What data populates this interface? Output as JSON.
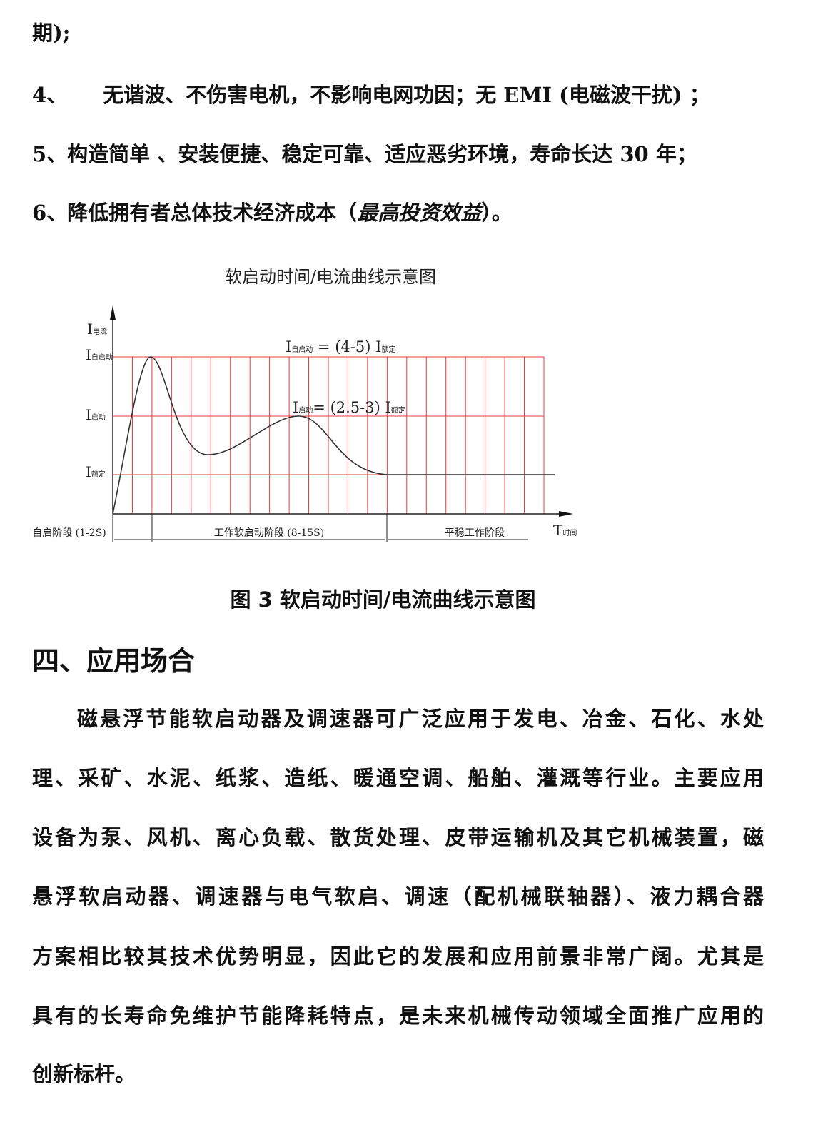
{
  "list": {
    "line0": "期);",
    "item4_num": "4、",
    "item4_text": "无谐波、不伤害电机，不影响电网功因；无 EMI (电磁波干扰) ；",
    "item5": "5、构造简单 、安装便捷、稳定可靠、适应恶劣环境，寿命长达 30 年；",
    "item6_pre": "6、降低拥有者总体技术经济成本（",
    "item6_em": "最高投资效益",
    "item6_post": "）。"
  },
  "figure": {
    "title": "软启动时间/电流曲线示意图",
    "caption": "图  3   软启动时间/电流曲线示意图",
    "grid_color": "#e8383d",
    "curve_color": "#333333",
    "y_axis": {
      "symbol": "I",
      "sub": "电流"
    },
    "x_axis": {
      "symbol": "T",
      "sub": "时间"
    },
    "levels": [
      {
        "symbol": "I",
        "sub": "自启动"
      },
      {
        "symbol": "I",
        "sub": "启动"
      },
      {
        "symbol": "I",
        "sub": "额定"
      }
    ],
    "annotation1": {
      "sym": "I",
      "sub": "自启动",
      "eq": " = (4-5) ",
      "sym2": "I",
      "sub2": "额定"
    },
    "annotation2": {
      "sym": "I",
      "sub": "启动",
      "eq": "= (2.5-3) ",
      "sym2": "I",
      "sub2": "额定"
    },
    "phases": [
      "自启阶段 (1-2S)",
      "工作软启动阶段 (8-15S)",
      "平稳工作阶段"
    ]
  },
  "section": {
    "heading": "四、应用场合",
    "lines": [
      "磁悬浮节能软启动器及调速器可广泛应用于发电、冶金、石化、水处",
      "理、采矿、水泥、纸浆、造纸、暖通空调、船舶、灌溉等行业。主要应用",
      "设备为泵、风机、离心负载、散货处理、皮带运输机及其它机械装置，磁",
      "悬浮软启动器、调速器与电气软启、调速（配机械联轴器）、液力耦合器",
      "方案相比较其技术优势明显，因此它的发展和应用前景非常广阔。尤其是",
      "具有的长寿命免维护节能降耗特点，是未来机械传动领域全面推广应用的",
      "创新标杆。"
    ]
  }
}
